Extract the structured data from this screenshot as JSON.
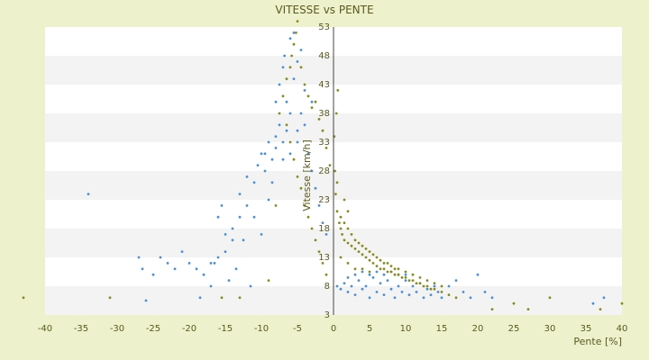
{
  "chart_data": {
    "type": "scatter",
    "title": "VITESSE vs PENTE",
    "xlabel": "Pente [%]",
    "ylabel": "Vitesse [km/h]",
    "xlim": [
      -40,
      40
    ],
    "ylim": [
      3,
      53
    ],
    "x_ticks": [
      -40,
      -35,
      -30,
      -25,
      -20,
      -15,
      -10,
      -5,
      0,
      5,
      10,
      15,
      20,
      25,
      30,
      35,
      40
    ],
    "y_ticks": [
      3,
      8,
      13,
      18,
      23,
      28,
      33,
      38,
      43,
      48,
      53
    ],
    "grid": "horizontal alternating bands",
    "legend": "none",
    "series": [
      {
        "color": "#4a90d9",
        "points": [
          [
            -34,
            24
          ],
          [
            -27,
            13
          ],
          [
            -26.5,
            11
          ],
          [
            -26,
            5.5
          ],
          [
            -25,
            10
          ],
          [
            -24,
            13
          ],
          [
            -23,
            12
          ],
          [
            -22,
            11
          ],
          [
            -21,
            14
          ],
          [
            -20,
            12
          ],
          [
            -19,
            11
          ],
          [
            -18.5,
            6
          ],
          [
            -18,
            10
          ],
          [
            -17,
            8
          ],
          [
            -16.5,
            12
          ],
          [
            -16,
            20
          ],
          [
            -15.5,
            22
          ],
          [
            -15,
            14
          ],
          [
            -14.5,
            9
          ],
          [
            -14,
            18
          ],
          [
            -13.5,
            11
          ],
          [
            -13,
            24
          ],
          [
            -12.5,
            16
          ],
          [
            -12,
            27
          ],
          [
            -11.5,
            8
          ],
          [
            -11,
            20
          ],
          [
            -10.5,
            29
          ],
          [
            -10,
            17
          ],
          [
            -9.5,
            31
          ],
          [
            -9,
            23
          ],
          [
            -8.5,
            26
          ],
          [
            -8,
            34
          ],
          [
            -7.5,
            36
          ],
          [
            -7,
            30
          ],
          [
            -6.5,
            40
          ],
          [
            -6,
            38
          ],
          [
            -5.5,
            44
          ],
          [
            -5,
            47
          ],
          [
            -4.5,
            49
          ],
          [
            -4,
            42
          ],
          [
            -6,
            51
          ],
          [
            -5.5,
            52
          ],
          [
            -7,
            46
          ],
          [
            -8,
            40
          ],
          [
            -6.5,
            35
          ],
          [
            -5,
            33
          ],
          [
            -4,
            36
          ],
          [
            -3.5,
            31
          ],
          [
            -3,
            28
          ],
          [
            -2.5,
            25
          ],
          [
            -2,
            22
          ],
          [
            -1.5,
            19
          ],
          [
            -1,
            17
          ],
          [
            -8,
            32
          ],
          [
            -9,
            33
          ],
          [
            -7,
            33
          ],
          [
            -6,
            31
          ],
          [
            -5,
            35
          ],
          [
            -4.5,
            38
          ],
          [
            -3,
            40
          ],
          [
            -9.5,
            28
          ],
          [
            -10,
            31
          ],
          [
            -8.5,
            30
          ],
          [
            -11,
            26
          ],
          [
            -12,
            22
          ],
          [
            -13,
            20
          ],
          [
            -14,
            16
          ],
          [
            -15,
            17
          ],
          [
            -16,
            13
          ],
          [
            -17,
            12
          ],
          [
            -7.5,
            43
          ],
          [
            -6.8,
            48
          ],
          [
            0.5,
            8
          ],
          [
            1,
            7.5
          ],
          [
            1.5,
            8.5
          ],
          [
            2,
            7
          ],
          [
            2.5,
            8
          ],
          [
            3,
            6.5
          ],
          [
            3.5,
            9
          ],
          [
            4,
            7.5
          ],
          [
            4.5,
            8
          ],
          [
            5,
            6
          ],
          [
            5.5,
            9.5
          ],
          [
            6,
            7
          ],
          [
            6.5,
            8.5
          ],
          [
            7,
            6.5
          ],
          [
            7.5,
            9
          ],
          [
            8,
            7.5
          ],
          [
            8.5,
            6
          ],
          [
            9,
            8
          ],
          [
            9.5,
            7
          ],
          [
            10,
            9
          ],
          [
            10.5,
            6.5
          ],
          [
            11,
            8
          ],
          [
            11.5,
            7
          ],
          [
            12,
            8.5
          ],
          [
            12.5,
            6
          ],
          [
            13,
            7.5
          ],
          [
            13.5,
            6.5
          ],
          [
            14,
            8
          ],
          [
            14.5,
            7
          ],
          [
            15,
            6
          ],
          [
            16,
            8
          ],
          [
            17,
            9
          ],
          [
            18,
            7
          ],
          [
            19,
            6
          ],
          [
            20,
            10
          ],
          [
            21,
            7
          ],
          [
            22,
            6
          ],
          [
            5,
            10
          ],
          [
            6,
            10.5
          ],
          [
            7,
            10
          ],
          [
            8,
            10.5
          ],
          [
            3,
            10
          ],
          [
            4,
            10.5
          ],
          [
            9,
            10
          ],
          [
            2,
            9.5
          ],
          [
            10,
            10
          ],
          [
            36,
            5
          ],
          [
            37.5,
            6
          ]
        ]
      },
      {
        "color": "#8a8a1a",
        "points": [
          [
            -43,
            6
          ],
          [
            -31,
            6
          ],
          [
            -15.5,
            6
          ],
          [
            -13,
            6
          ],
          [
            -9,
            9
          ],
          [
            -8,
            22
          ],
          [
            -7.5,
            38
          ],
          [
            -7,
            41
          ],
          [
            -6.5,
            44
          ],
          [
            -6,
            46
          ],
          [
            -5.8,
            48
          ],
          [
            -5.5,
            50
          ],
          [
            -5.2,
            52
          ],
          [
            -5,
            54
          ],
          [
            -4.5,
            46
          ],
          [
            -4,
            43
          ],
          [
            -3.5,
            41
          ],
          [
            -3,
            39
          ],
          [
            -2.5,
            40
          ],
          [
            -2,
            37
          ],
          [
            -1.5,
            35
          ],
          [
            -1,
            32
          ],
          [
            -0.5,
            29
          ],
          [
            -6.5,
            36
          ],
          [
            -6,
            33
          ],
          [
            -5.5,
            30
          ],
          [
            -5,
            27
          ],
          [
            -4.5,
            25
          ],
          [
            -4,
            22
          ],
          [
            -3.5,
            20
          ],
          [
            -3,
            18
          ],
          [
            -2.5,
            16
          ],
          [
            -2,
            14
          ],
          [
            -1.5,
            12
          ],
          [
            -1,
            10
          ],
          [
            0.3,
            24
          ],
          [
            0.5,
            21
          ],
          [
            0.8,
            19
          ],
          [
            1,
            18
          ],
          [
            1.2,
            17
          ],
          [
            1.5,
            16
          ],
          [
            2,
            15.5
          ],
          [
            2.5,
            15
          ],
          [
            3,
            14.5
          ],
          [
            3.5,
            14
          ],
          [
            4,
            13.5
          ],
          [
            4.5,
            13
          ],
          [
            5,
            12.5
          ],
          [
            5.5,
            12
          ],
          [
            6,
            11.5
          ],
          [
            6.5,
            11
          ],
          [
            7,
            11
          ],
          [
            7.5,
            10.5
          ],
          [
            8,
            10.5
          ],
          [
            8.5,
            10
          ],
          [
            9,
            10
          ],
          [
            9.5,
            9.5
          ],
          [
            10,
            9.5
          ],
          [
            10.5,
            9
          ],
          [
            11,
            9
          ],
          [
            11.5,
            8.5
          ],
          [
            12,
            8.5
          ],
          [
            12.5,
            8
          ],
          [
            13,
            8
          ],
          [
            13.5,
            7.5
          ],
          [
            14,
            7.5
          ],
          [
            15,
            7
          ],
          [
            16,
            6.5
          ],
          [
            17,
            6
          ],
          [
            1,
            20
          ],
          [
            1.5,
            19
          ],
          [
            2,
            18
          ],
          [
            2.5,
            17
          ],
          [
            3,
            16
          ],
          [
            3.5,
            15.5
          ],
          [
            4,
            15
          ],
          [
            4.5,
            14.5
          ],
          [
            5,
            14
          ],
          [
            5.5,
            13.5
          ],
          [
            6,
            13
          ],
          [
            6.5,
            12.5
          ],
          [
            7,
            12
          ],
          [
            7.5,
            12
          ],
          [
            8,
            11.5
          ],
          [
            8.5,
            11
          ],
          [
            9,
            11
          ],
          [
            10,
            10.5
          ],
          [
            11,
            10
          ],
          [
            12,
            9.5
          ],
          [
            13,
            9
          ],
          [
            14,
            8.5
          ],
          [
            15,
            8
          ],
          [
            1,
            13
          ],
          [
            2,
            12
          ],
          [
            3,
            11
          ],
          [
            4,
            11
          ],
          [
            5,
            10.5
          ],
          [
            1.5,
            23
          ],
          [
            2,
            21
          ],
          [
            0.5,
            26
          ],
          [
            0.2,
            28
          ],
          [
            0.1,
            34
          ],
          [
            0.4,
            38
          ],
          [
            0.6,
            42
          ],
          [
            30,
            6
          ],
          [
            27,
            4
          ],
          [
            37,
            4
          ],
          [
            40,
            5
          ],
          [
            25,
            5
          ],
          [
            22,
            4
          ]
        ]
      }
    ]
  }
}
